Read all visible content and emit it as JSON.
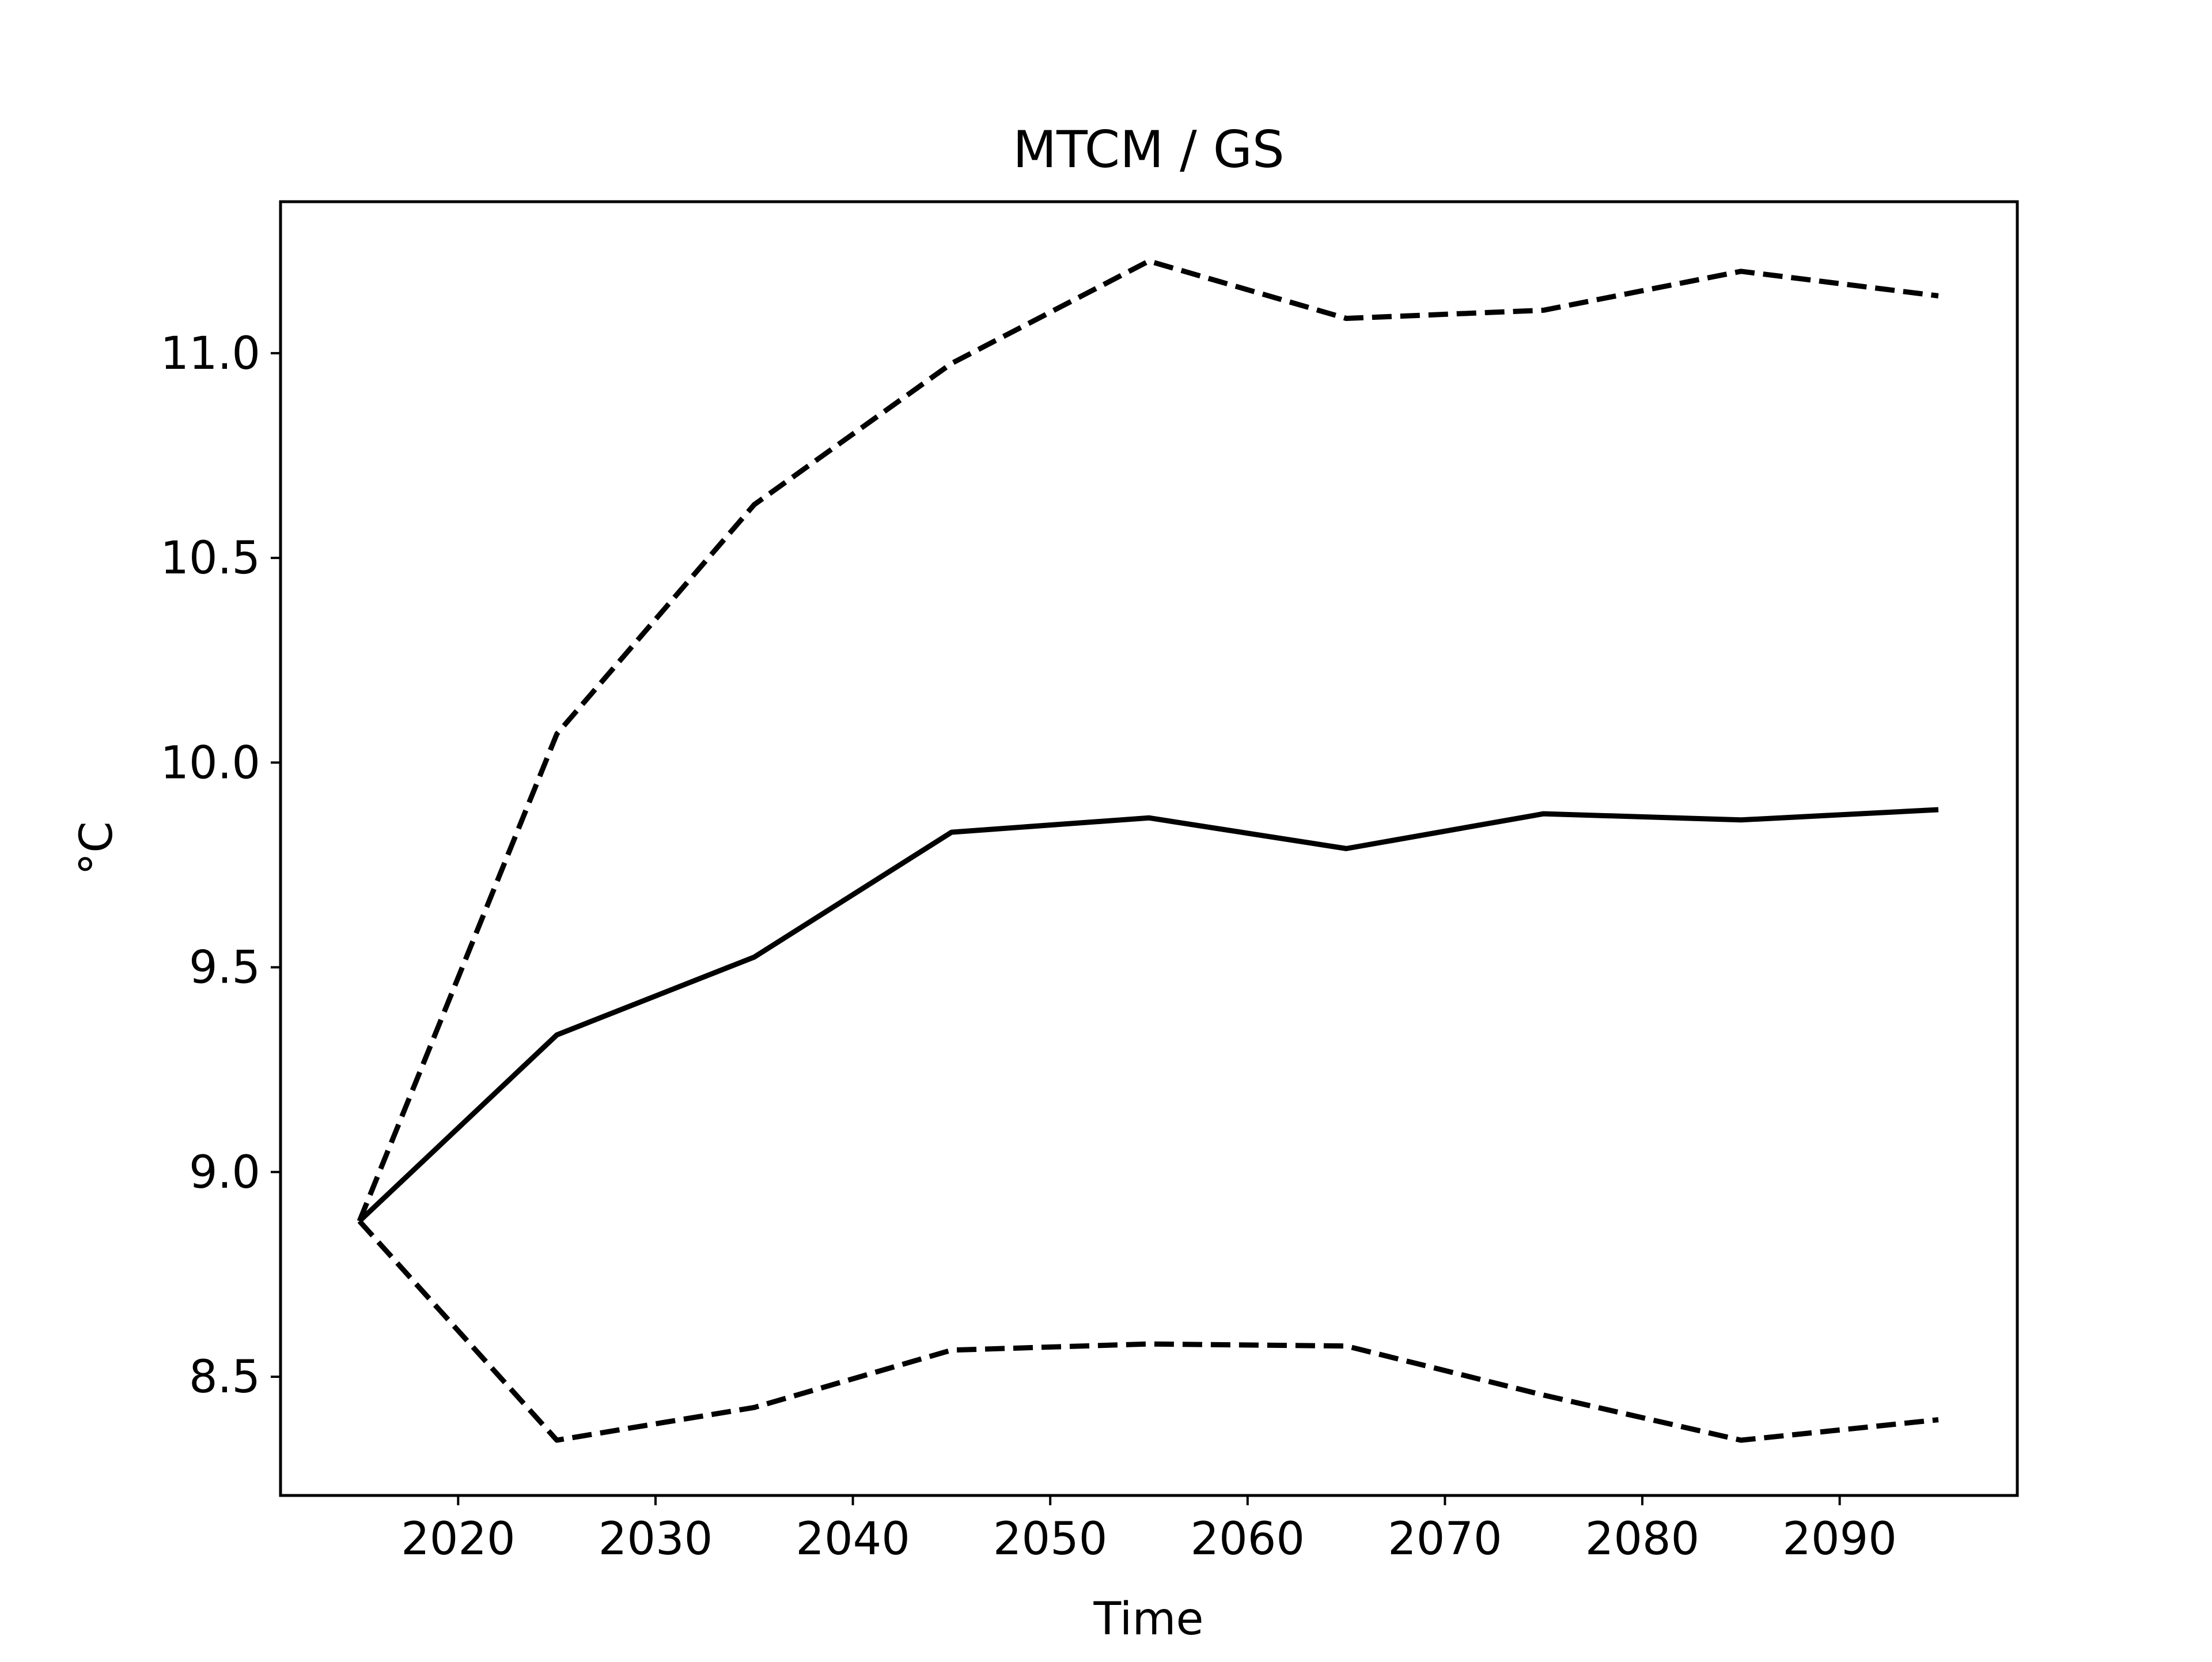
{
  "chart_data": {
    "type": "line",
    "title": "MTCM / GS",
    "xlabel": "Time",
    "ylabel": "°C",
    "x": [
      2015,
      2025,
      2035,
      2045,
      2055,
      2065,
      2075,
      2085,
      2095
    ],
    "series": [
      {
        "style": "solid",
        "color": "#000000",
        "values": [
          8.88,
          9.335,
          9.525,
          9.83,
          9.865,
          9.79,
          9.875,
          9.86,
          9.885
        ]
      },
      {
        "style": "dashed",
        "color": "#000000",
        "values": [
          8.88,
          10.07,
          10.63,
          10.975,
          11.225,
          11.085,
          11.105,
          11.2,
          11.14
        ]
      },
      {
        "style": "dashed",
        "color": "#000000",
        "values": [
          8.88,
          8.345,
          8.425,
          8.565,
          8.58,
          8.575,
          8.455,
          8.345,
          8.395
        ]
      }
    ],
    "xlim": [
      2011,
      2099
    ],
    "ylim": [
      8.21,
      11.37
    ],
    "xticks": [
      2020,
      2030,
      2040,
      2050,
      2060,
      2070,
      2080,
      2090
    ],
    "yticks": [
      8.5,
      9.0,
      9.5,
      10.0,
      10.5,
      11.0
    ],
    "ytick_labels": [
      "8.5",
      "9.0",
      "9.5",
      "10.0",
      "10.5",
      "11.0"
    ],
    "grid": false,
    "legend": "none"
  }
}
